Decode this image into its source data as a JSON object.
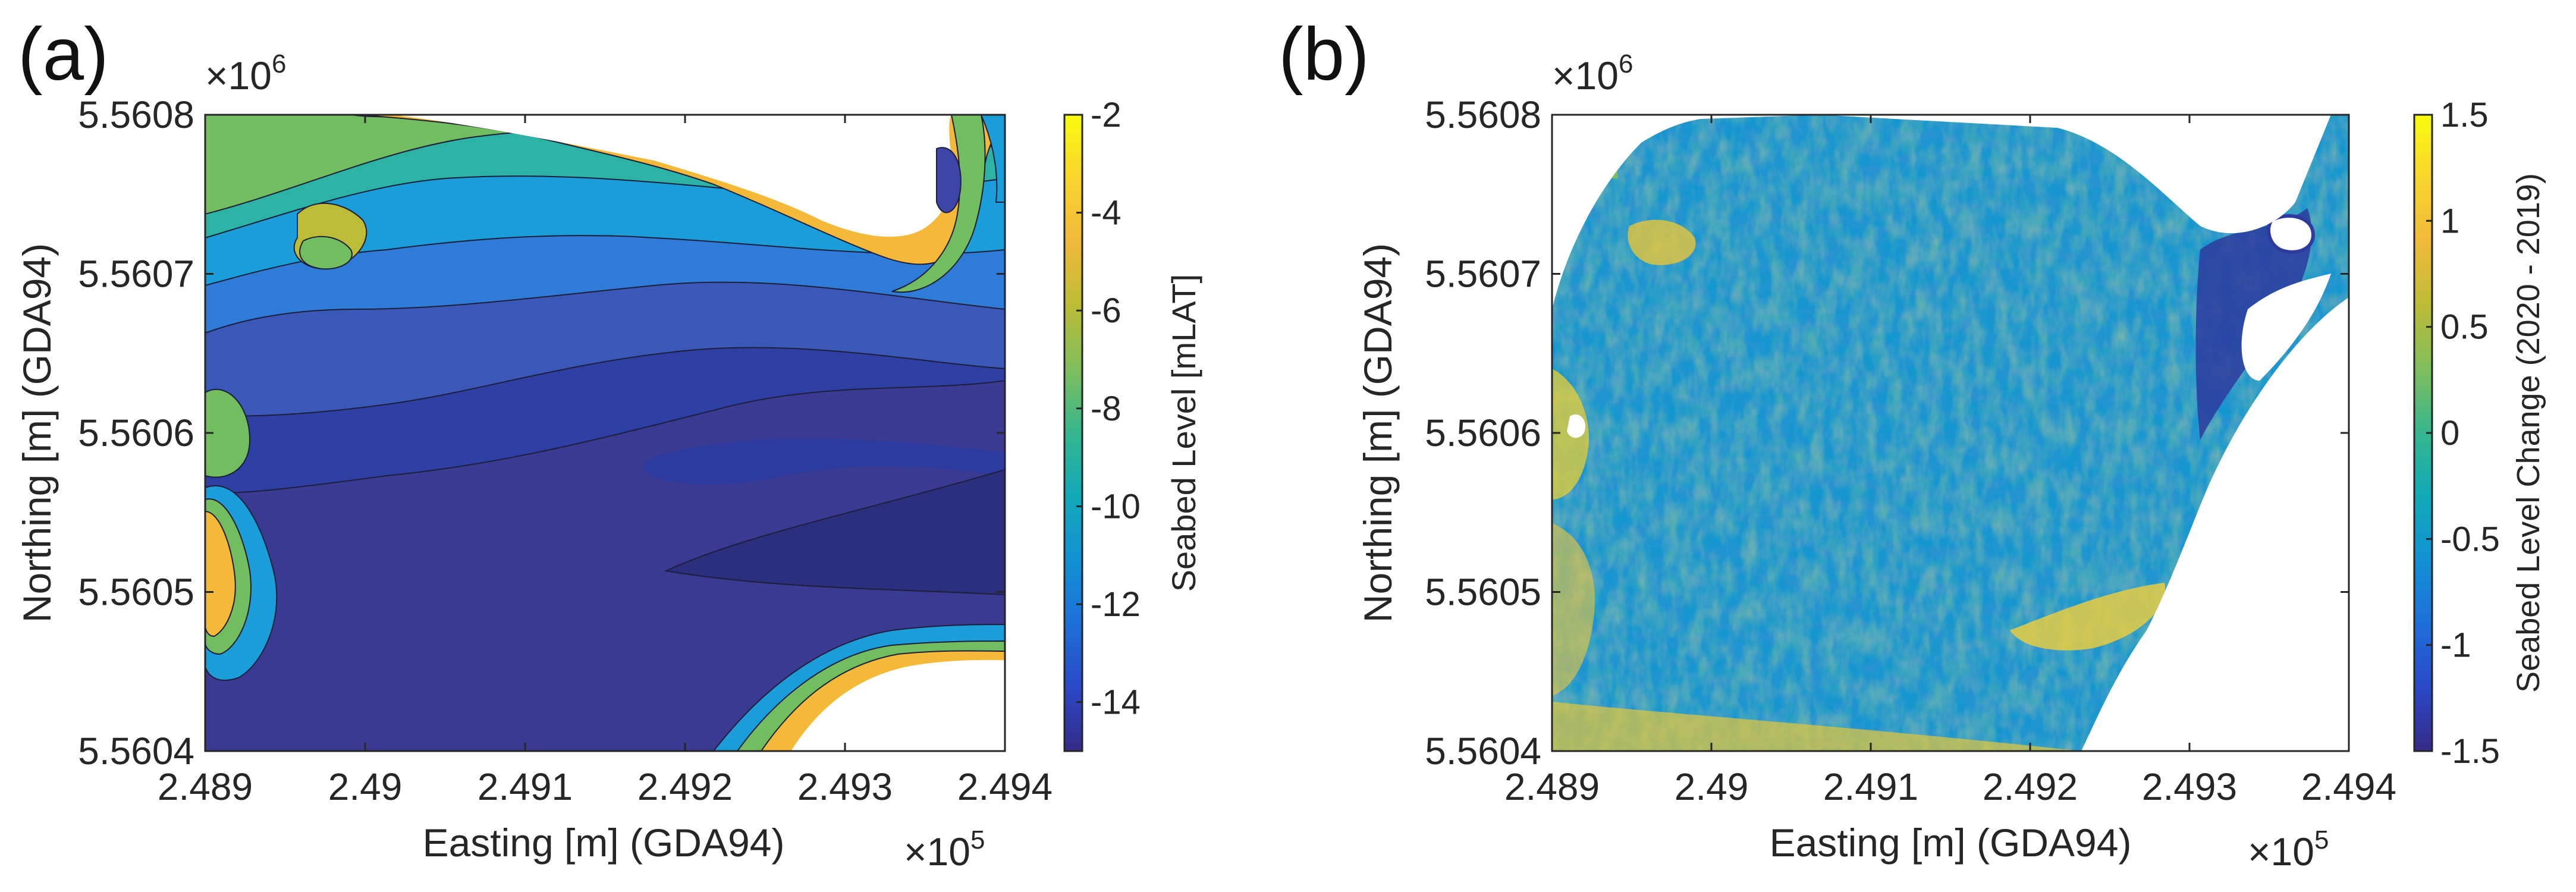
{
  "panels": [
    {
      "label": "(a)"
    },
    {
      "label": "(b)"
    }
  ],
  "chart_data": [
    {
      "type": "heatmap",
      "subtype": "filled-contour",
      "panel": "(a)",
      "xlabel": "Easting [m] (GDA94)",
      "ylabel": "Northing [m] (GDA94)",
      "x_ticks": [
        "2.489",
        "2.49",
        "2.491",
        "2.492",
        "2.493",
        "2.494"
      ],
      "y_ticks": [
        "5.5604",
        "5.5605",
        "5.5606",
        "5.5607",
        "5.5608"
      ],
      "x_exponent": {
        "base": "×10",
        "power": "5"
      },
      "y_exponent": {
        "base": "×10",
        "power": "6"
      },
      "xlim": [
        248900,
        249400
      ],
      "ylim": [
        5560400,
        5560800
      ],
      "colorbar": {
        "label": "Seabed Level [mLAT]",
        "range": [
          -15,
          -2
        ],
        "ticks": [
          "-2",
          "-4",
          "-6",
          "-8",
          "-10",
          "-12",
          "-14"
        ],
        "colormap": "parula"
      },
      "contour_levels": [
        -15,
        -14,
        -13,
        -12,
        -11,
        -10,
        -9,
        -8,
        -7,
        -6,
        -5,
        -4,
        -3,
        -2
      ]
    },
    {
      "type": "heatmap",
      "subtype": "difference-map",
      "panel": "(b)",
      "xlabel": "Easting [m] (GDA94)",
      "ylabel": "Northing [m] (GDA94)",
      "x_ticks": [
        "2.489",
        "2.49",
        "2.491",
        "2.492",
        "2.493",
        "2.494"
      ],
      "y_ticks": [
        "5.5604",
        "5.5605",
        "5.5606",
        "5.5607",
        "5.5608"
      ],
      "x_exponent": {
        "base": "×10",
        "power": "5"
      },
      "y_exponent": {
        "base": "×10",
        "power": "6"
      },
      "xlim": [
        248900,
        249400
      ],
      "ylim": [
        5560400,
        5560800
      ],
      "colorbar": {
        "label": "Seabed Level Change (2020 - 2019)",
        "range": [
          -1.5,
          1.5
        ],
        "ticks": [
          "1.5",
          "1",
          "0.5",
          "0",
          "-0.5",
          "-1",
          "-1.5"
        ],
        "colormap": "parula"
      }
    }
  ],
  "colors": {
    "parula": [
      "#352a87",
      "#2a48c6",
      "#1d6fd8",
      "#1291d4",
      "#11a9b8",
      "#35b68e",
      "#7fbe5c",
      "#bcbc36",
      "#f1b93a",
      "#f9d42d",
      "#f9fb0e"
    ]
  }
}
